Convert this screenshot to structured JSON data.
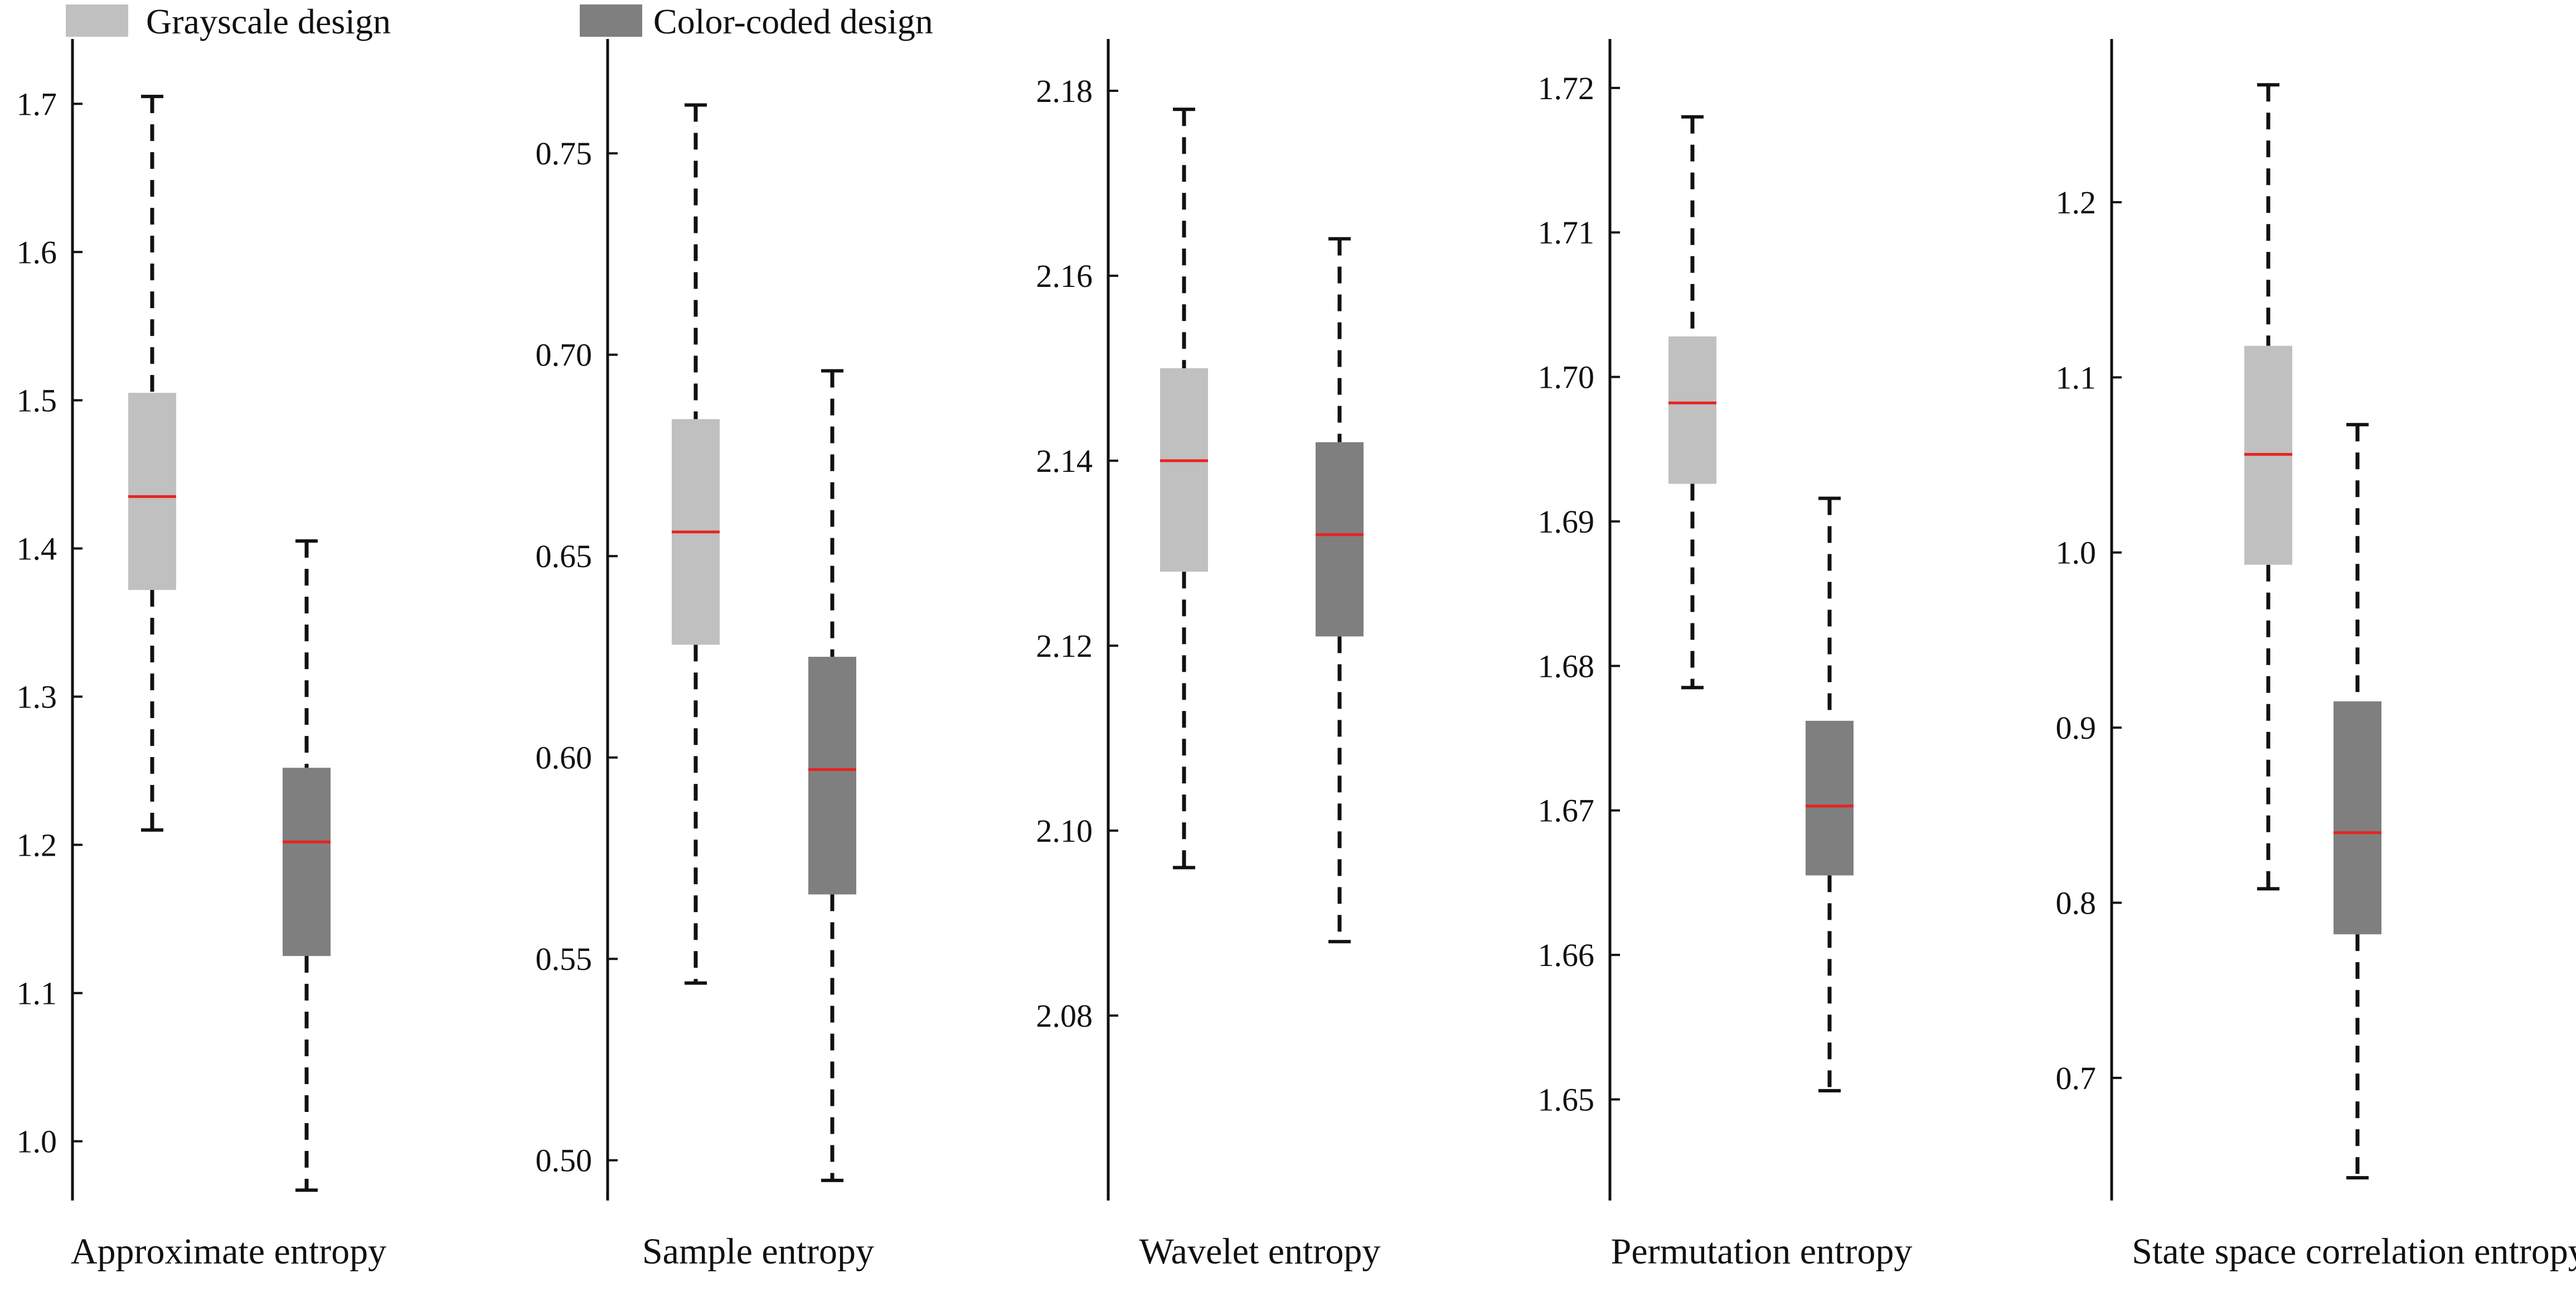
{
  "legend": {
    "items": [
      {
        "label": "Grayscale design",
        "color": "#c0c0c0"
      },
      {
        "label": "Color-coded design",
        "color": "#7f7f7f"
      }
    ]
  },
  "colors": {
    "grayscale": "#c0c0c0",
    "color_coded": "#7f7f7f",
    "median": "#e8231f",
    "axis": "#111111",
    "whisker": "#111111"
  },
  "chart_data": [
    {
      "type": "box",
      "xlabel": "Approximate entropy",
      "ylim": [
        0.96,
        1.74
      ],
      "yticks": [
        "1.0",
        "1.1",
        "1.2",
        "1.3",
        "1.4",
        "1.5",
        "1.6",
        "1.7"
      ],
      "series": [
        {
          "name": "Grayscale design",
          "min": 1.21,
          "q1": 1.372,
          "median": 1.435,
          "q3": 1.505,
          "max": 1.705
        },
        {
          "name": "Color-coded design",
          "min": 0.967,
          "q1": 1.125,
          "median": 1.202,
          "q3": 1.252,
          "max": 1.405
        }
      ]
    },
    {
      "type": "box",
      "xlabel": "Sample entropy",
      "ylim": [
        0.49,
        0.777
      ],
      "yticks": [
        "0.50",
        "0.55",
        "0.60",
        "0.65",
        "0.70",
        "0.75"
      ],
      "series": [
        {
          "name": "Grayscale design",
          "min": 0.544,
          "q1": 0.628,
          "median": 0.656,
          "q3": 0.684,
          "max": 0.762
        },
        {
          "name": "Color-coded design",
          "min": 0.495,
          "q1": 0.566,
          "median": 0.597,
          "q3": 0.625,
          "max": 0.696
        }
      ]
    },
    {
      "type": "box",
      "xlabel": "Wavelet entropy",
      "ylim": [
        2.06,
        2.185
      ],
      "yticks": [
        "2.08",
        "2.10",
        "2.12",
        "2.14",
        "2.16",
        "2.18"
      ],
      "series": [
        {
          "name": "Grayscale design",
          "min": 2.096,
          "q1": 2.128,
          "median": 2.14,
          "q3": 2.15,
          "max": 2.178
        },
        {
          "name": "Color-coded design",
          "min": 2.088,
          "q1": 2.121,
          "median": 2.132,
          "q3": 2.142,
          "max": 2.164
        }
      ]
    },
    {
      "type": "box",
      "xlabel": "Permutation entropy",
      "ylim": [
        1.643,
        1.723
      ],
      "yticks": [
        "1.65",
        "1.66",
        "1.67",
        "1.68",
        "1.69",
        "1.70",
        "1.71",
        "1.72"
      ],
      "series": [
        {
          "name": "Grayscale design",
          "min": 1.6785,
          "q1": 1.6926,
          "median": 1.6982,
          "q3": 1.7028,
          "max": 1.718
        },
        {
          "name": "Color-coded design",
          "min": 1.6506,
          "q1": 1.6655,
          "median": 1.6703,
          "q3": 1.6762,
          "max": 1.6916
        }
      ]
    },
    {
      "type": "box",
      "xlabel": "State space correlation entropy",
      "ylim": [
        0.63,
        1.29
      ],
      "yticks": [
        "0.7",
        "0.8",
        "0.9",
        "1.0",
        "1.1",
        "1.2"
      ],
      "series": [
        {
          "name": "Grayscale design",
          "min": 0.808,
          "q1": 0.993,
          "median": 1.056,
          "q3": 1.118,
          "max": 1.267
        },
        {
          "name": "Color-coded design",
          "min": 0.643,
          "q1": 0.782,
          "median": 0.84,
          "q3": 0.915,
          "max": 1.073
        }
      ]
    }
  ]
}
